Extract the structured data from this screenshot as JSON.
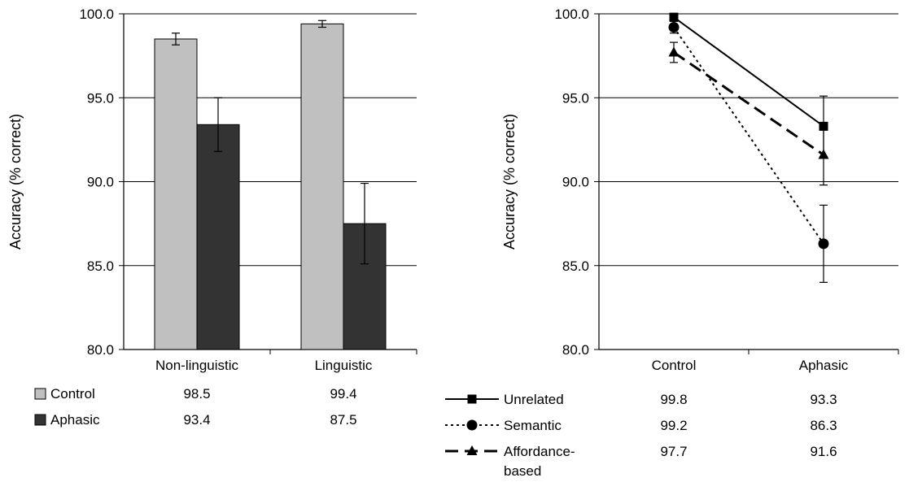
{
  "chart_data": [
    {
      "type": "bar",
      "ylabel": "Accuracy (% correct)",
      "ylim": [
        80,
        100
      ],
      "yticks": [
        "80.0",
        "85.0",
        "90.0",
        "95.0",
        "100.0"
      ],
      "grid": true,
      "categories": [
        "Non-linguistic",
        "Linguistic"
      ],
      "series": [
        {
          "name": "Control",
          "color": "#c0c0c0",
          "values": [
            98.5,
            99.4
          ],
          "error": [
            0.35,
            0.2
          ]
        },
        {
          "name": "Aphasic",
          "color": "#333333",
          "values": [
            93.4,
            87.5
          ],
          "error": [
            1.6,
            2.4
          ]
        }
      ],
      "table": {
        "rows": [
          {
            "name": "Control",
            "values": [
              "98.5",
              "99.4"
            ]
          },
          {
            "name": "Aphasic",
            "values": [
              "93.4",
              "87.5"
            ]
          }
        ]
      }
    },
    {
      "type": "line",
      "ylabel": "Accuracy (% correct)",
      "ylim": [
        80,
        100
      ],
      "yticks": [
        "80.0",
        "85.0",
        "90.0",
        "95.0",
        "100.0"
      ],
      "grid": true,
      "categories": [
        "Control",
        "Aphasic"
      ],
      "series": [
        {
          "name": "Unrelated",
          "marker": "square",
          "line": "solid",
          "values": [
            99.8,
            93.3
          ],
          "error": [
            null,
            1.8
          ]
        },
        {
          "name": "Semantic",
          "marker": "circle",
          "line": "dotted",
          "values": [
            99.2,
            86.3
          ],
          "error": [
            0.35,
            2.3
          ]
        },
        {
          "name": "Affordance-based",
          "marker": "triangle",
          "line": "dashed",
          "values": [
            97.7,
            91.6
          ],
          "error": [
            0.6,
            1.8
          ]
        }
      ],
      "table": {
        "rows": [
          {
            "name": "Unrelated",
            "label_lines": [
              "Unrelated"
            ],
            "values": [
              "99.8",
              "93.3"
            ]
          },
          {
            "name": "Semantic",
            "label_lines": [
              "Semantic"
            ],
            "values": [
              "99.2",
              "86.3"
            ]
          },
          {
            "name": "Affordance-based",
            "label_lines": [
              "Affordance-",
              "based"
            ],
            "values": [
              "97.7",
              "91.6"
            ]
          }
        ]
      }
    }
  ]
}
